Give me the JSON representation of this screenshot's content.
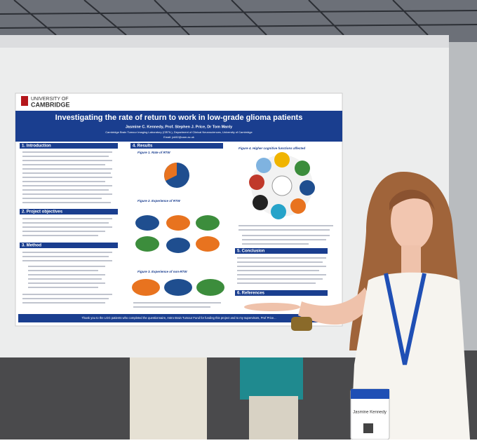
{
  "poster": {
    "logo": [
      "UNIVERSITY OF",
      "CAMBRIDGE"
    ],
    "title": "Investigating the rate of return to work in low-grade glioma patients",
    "authors": "Jasmine C. Kennedy, Prof. Stephen J. Price, Dr Tom Manly",
    "affiliation": "Cambridge Brain Tumour Imaging Laboratory (CBTIL), Department of Clinical Neurosciences, University of Cambridge",
    "email": "Email: jck52@cam.ac.uk",
    "sections": [
      "1. Introduction",
      "2. Project objectives",
      "3. Method",
      "4. Results",
      "5. Conclusion",
      "6. References"
    ],
    "figures": [
      "Figure 1. Rate of RTW",
      "Figure 2. Experience of RTW",
      "Figure 3. Experience of non-RTW",
      "Figure 4. Higher cognitive functions affected"
    ],
    "footer": "Thank you to the LGG patients who completed the questionnaire, Astro Brain Tumour Fund for funding this project and to my supervisors, Prof Price..."
  },
  "badge": {
    "name": "Jasmine Kennedy"
  }
}
